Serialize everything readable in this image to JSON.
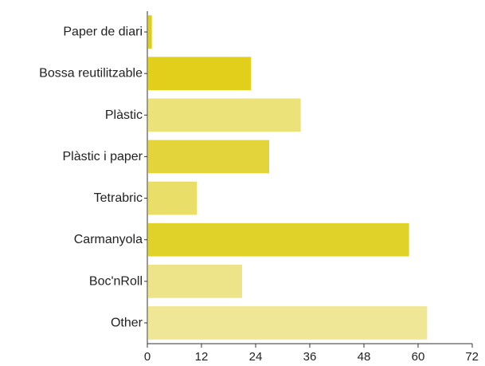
{
  "chart_data": {
    "type": "bar",
    "orientation": "horizontal",
    "categories": [
      "Paper de diari",
      "Bossa reutilitzable",
      "Plàstic",
      "Plàstic i paper",
      "Tetrabric",
      "Carmanyola",
      "Boc'nRoll",
      "Other"
    ],
    "values": [
      1,
      23,
      34,
      27,
      11,
      58,
      21,
      62
    ],
    "xlim": [
      0,
      72
    ],
    "xticks": [
      "0",
      "12",
      "24",
      "36",
      "48",
      "60",
      "72"
    ],
    "bar_colors": [
      "#dccd1f",
      "#e1cf1c",
      "#ebe27a",
      "#e4d43c",
      "#e9df68",
      "#e1d22a",
      "#ede48a",
      "#efe795"
    ],
    "title": "",
    "xlabel": "",
    "ylabel": "",
    "grid": false,
    "legend": "none"
  }
}
